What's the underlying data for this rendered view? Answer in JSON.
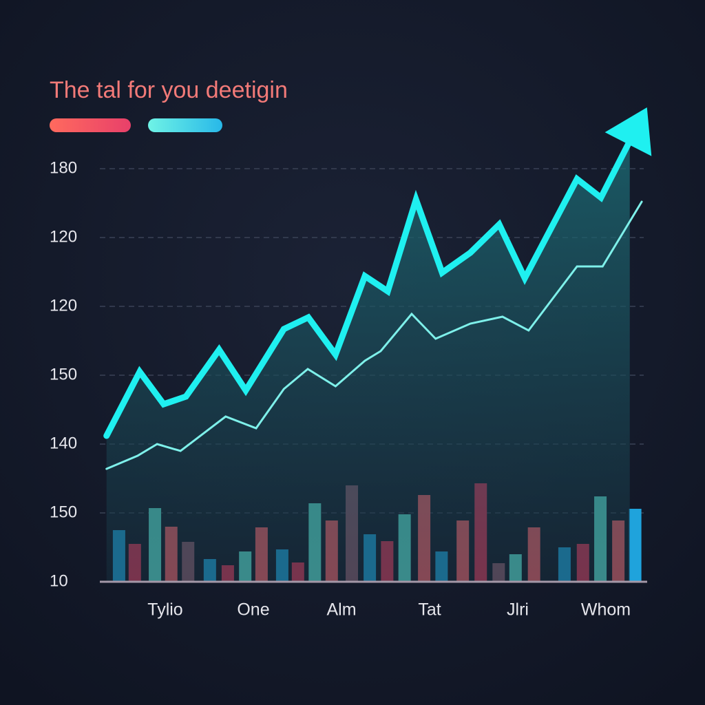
{
  "chart_data": {
    "type": "line",
    "title": "The tal for you deetigin",
    "categories": [
      "Tylio",
      "One",
      "Alm",
      "Tat",
      "Jlri",
      "Whom"
    ],
    "xlim": [
      0,
      100
    ],
    "ylim": [
      0,
      6
    ],
    "yticks": [
      {
        "value": 0,
        "label": "10"
      },
      {
        "value": 1,
        "label": "150"
      },
      {
        "value": 2,
        "label": "140"
      },
      {
        "value": 3,
        "label": "150"
      },
      {
        "value": 4,
        "label": "120"
      },
      {
        "value": 5,
        "label": "120"
      },
      {
        "value": 6,
        "label": "180"
      }
    ],
    "grid": true,
    "series": [
      {
        "color": "#1ff0f0",
        "width": 9,
        "fill": true,
        "x": [
          0.6,
          6.7,
          11.1,
          15.2,
          21.3,
          26.2,
          33.2,
          37.7,
          42.7,
          48.1,
          52.3,
          57.5,
          62.3,
          67.5,
          72.8,
          77.5,
          87.1,
          91.5,
          96.8
        ],
        "values": [
          2.12,
          3.05,
          2.58,
          2.69,
          3.37,
          2.78,
          3.67,
          3.84,
          3.3,
          4.44,
          4.22,
          5.55,
          4.49,
          4.78,
          5.19,
          4.41,
          5.85,
          5.58,
          6.4
        ]
      },
      {
        "color": "#7ef0ea",
        "width": 3,
        "fill": false,
        "x": [
          0.6,
          6.3,
          9.9,
          14.2,
          22.5,
          28.1,
          33.2,
          37.6,
          42.7,
          48.1,
          51.0,
          56.7,
          61.1,
          67.5,
          73.4,
          78.2,
          87.1,
          91.8,
          99.0
        ],
        "values": [
          1.64,
          1.83,
          2.0,
          1.9,
          2.4,
          2.23,
          2.8,
          3.09,
          2.84,
          3.21,
          3.35,
          3.89,
          3.53,
          3.75,
          3.85,
          3.65,
          4.58,
          4.58,
          5.52
        ]
      }
    ],
    "bars": {
      "x": [
        2.9,
        5.8,
        9.5,
        12.5,
        15.6,
        19.6,
        22.9,
        26.1,
        29.1,
        32.9,
        35.8,
        38.9,
        42.0,
        45.7,
        49.0,
        52.2,
        55.4,
        59.0,
        62.2,
        66.1,
        69.4,
        72.7,
        75.8,
        79.2,
        84.8,
        88.2,
        91.4,
        94.7,
        97.8
      ],
      "values": [
        0.75,
        0.55,
        1.07,
        0.8,
        0.58,
        0.33,
        0.24,
        0.44,
        0.79,
        0.47,
        0.28,
        1.14,
        0.89,
        1.4,
        0.69,
        0.59,
        0.98,
        1.26,
        0.44,
        0.89,
        1.43,
        0.27,
        0.4,
        0.79,
        0.5,
        0.55,
        1.24,
        0.89,
        1.06
      ],
      "colors": [
        "#1fa3dc",
        "#d9365a",
        "#5de5d5",
        "#f2606a",
        "#8a5a6e",
        "#1fa3dc",
        "#d9365a",
        "#5de5d5",
        "#f2606a",
        "#1fa3dc",
        "#d9365a",
        "#5de5d5",
        "#f2606a",
        "#8a5a6e",
        "#1fa3dc",
        "#d9365a",
        "#5de5d5",
        "#f2606a",
        "#1fa3dc",
        "#f2606a",
        "#d9365a",
        "#8a5a6e",
        "#5de5d5",
        "#f2606a",
        "#1fa3dc",
        "#d9365a",
        "#5de5d5",
        "#f2606a",
        "#1fa3dc"
      ]
    }
  }
}
